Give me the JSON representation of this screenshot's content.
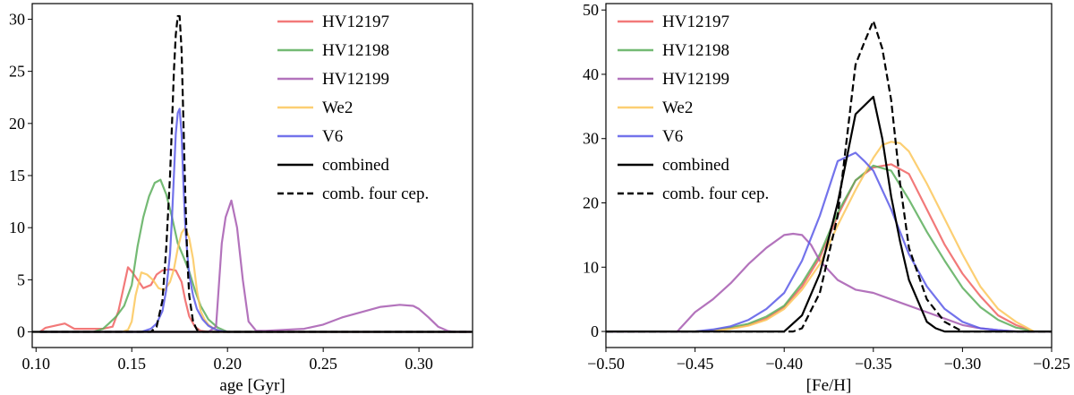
{
  "chart_data": [
    {
      "type": "line",
      "xlabel": "age [Gyr]",
      "ylabel": "",
      "xlim": [
        0.098,
        0.328
      ],
      "ylim": [
        -1.5,
        31.5
      ],
      "xticks": [
        0.1,
        0.15,
        0.2,
        0.25,
        0.3
      ],
      "xtick_labels": [
        "0.10",
        "0.15",
        "0.20",
        "0.25",
        "0.30"
      ],
      "yticks": [
        0,
        5,
        10,
        15,
        20,
        25,
        30
      ],
      "ytick_labels": [
        "0",
        "5",
        "10",
        "15",
        "20",
        "25",
        "30"
      ],
      "legend_position": "upper-right",
      "series": [
        {
          "name": "HV12197",
          "color": "#f06262",
          "dash": "solid",
          "x": [
            0.102,
            0.105,
            0.11,
            0.115,
            0.12,
            0.125,
            0.13,
            0.135,
            0.14,
            0.143,
            0.146,
            0.148,
            0.15,
            0.153,
            0.156,
            0.16,
            0.163,
            0.166,
            0.17,
            0.173,
            0.176,
            0.178,
            0.18,
            0.183,
            0.186,
            0.19,
            0.2,
            0.23,
            0.327
          ],
          "y": [
            0,
            0.4,
            0.6,
            0.8,
            0.3,
            0.3,
            0.3,
            0.3,
            0.5,
            2.0,
            4.5,
            6.2,
            5.8,
            5.0,
            4.2,
            4.5,
            5.5,
            5.9,
            6.0,
            5.9,
            4.8,
            3.0,
            1.5,
            0.5,
            0.1,
            0,
            0,
            0,
            0
          ]
        },
        {
          "name": "HV12198",
          "color": "#5cae5c",
          "dash": "solid",
          "x": [
            0.102,
            0.13,
            0.135,
            0.138,
            0.142,
            0.146,
            0.15,
            0.153,
            0.156,
            0.159,
            0.162,
            0.165,
            0.168,
            0.171,
            0.174,
            0.177,
            0.18,
            0.183,
            0.186,
            0.19,
            0.195,
            0.2,
            0.21,
            0.23,
            0.327
          ],
          "y": [
            0,
            0,
            0.3,
            0.8,
            1.5,
            2.5,
            4.5,
            8.2,
            11.0,
            13.0,
            14.3,
            14.6,
            13.2,
            11.0,
            8.5,
            7.2,
            5.8,
            4.0,
            2.5,
            1.2,
            0.4,
            0,
            0,
            0,
            0
          ]
        },
        {
          "name": "HV12199",
          "color": "#a65ab0",
          "dash": "solid",
          "x": [
            0.102,
            0.18,
            0.19,
            0.194,
            0.197,
            0.199,
            0.202,
            0.205,
            0.208,
            0.211,
            0.215,
            0.22,
            0.23,
            0.24,
            0.25,
            0.26,
            0.27,
            0.28,
            0.29,
            0.297,
            0.3,
            0.305,
            0.31,
            0.315,
            0.318,
            0.327
          ],
          "y": [
            0,
            0,
            0,
            0.5,
            8.5,
            11.0,
            12.6,
            10.0,
            5.0,
            1.0,
            0.1,
            0.1,
            0.2,
            0.3,
            0.7,
            1.4,
            1.9,
            2.4,
            2.6,
            2.5,
            2.2,
            1.4,
            0.5,
            0.1,
            0,
            0
          ]
        },
        {
          "name": "We2",
          "color": "#fcc75a",
          "dash": "solid",
          "x": [
            0.102,
            0.145,
            0.148,
            0.15,
            0.152,
            0.155,
            0.158,
            0.161,
            0.164,
            0.167,
            0.17,
            0.172,
            0.174,
            0.176,
            0.178,
            0.18,
            0.182,
            0.184,
            0.186,
            0.188,
            0.19,
            0.193,
            0.196,
            0.2,
            0.23,
            0.327
          ],
          "y": [
            0,
            0,
            0.2,
            1.0,
            3.5,
            5.7,
            5.5,
            5.0,
            4.2,
            4.0,
            4.8,
            6.0,
            8.0,
            9.5,
            10.0,
            9.0,
            7.0,
            4.0,
            2.0,
            1.2,
            0.7,
            0.3,
            0.1,
            0,
            0,
            0
          ]
        },
        {
          "name": "V6",
          "color": "#5a5ae8",
          "dash": "solid",
          "x": [
            0.102,
            0.155,
            0.16,
            0.163,
            0.166,
            0.168,
            0.17,
            0.171,
            0.172,
            0.173,
            0.174,
            0.175,
            0.176,
            0.177,
            0.178,
            0.179,
            0.18,
            0.182,
            0.184,
            0.187,
            0.19,
            0.193,
            0.196,
            0.2,
            0.205,
            0.327
          ],
          "y": [
            0,
            0,
            0.3,
            0.8,
            2.0,
            4.0,
            7.5,
            11.0,
            15.0,
            19.0,
            21.0,
            21.4,
            19.0,
            14.0,
            10.0,
            7.5,
            5.5,
            3.5,
            2.2,
            1.2,
            0.6,
            0.3,
            0.1,
            0,
            0,
            0
          ]
        },
        {
          "name": "combined",
          "color": "#000000",
          "dash": "solid",
          "x": [
            0.098,
            0.328
          ],
          "y": [
            0,
            0
          ]
        },
        {
          "name": "comb. four cep.",
          "color": "#000000",
          "dash": "dashed",
          "x": [
            0.102,
            0.16,
            0.163,
            0.166,
            0.168,
            0.17,
            0.171,
            0.172,
            0.173,
            0.174,
            0.175,
            0.176,
            0.177,
            0.178,
            0.179,
            0.18,
            0.182,
            0.184,
            0.187,
            0.327
          ],
          "y": [
            0,
            0,
            0.5,
            3.0,
            8.0,
            15.0,
            20.0,
            25.0,
            28.5,
            30.3,
            30.3,
            27.0,
            20.0,
            13.0,
            7.0,
            3.5,
            1.0,
            0.2,
            0,
            0
          ]
        }
      ]
    },
    {
      "type": "line",
      "xlabel": "[Fe/H]",
      "ylabel": "",
      "xlim": [
        -0.5,
        -0.25
      ],
      "ylim": [
        -2.5,
        51
      ],
      "xticks": [
        -0.5,
        -0.45,
        -0.4,
        -0.35,
        -0.3,
        -0.25
      ],
      "xtick_labels": [
        "−0.50",
        "−0.45",
        "−0.40",
        "−0.35",
        "−0.30",
        "−0.25"
      ],
      "yticks": [
        0,
        10,
        20,
        30,
        40,
        50
      ],
      "ytick_labels": [
        "0",
        "10",
        "20",
        "30",
        "40",
        "50"
      ],
      "legend_position": "upper-left",
      "series": [
        {
          "name": "HV12197",
          "color": "#f06262",
          "dash": "solid",
          "x": [
            -0.5,
            -0.45,
            -0.44,
            -0.43,
            -0.42,
            -0.41,
            -0.4,
            -0.39,
            -0.38,
            -0.37,
            -0.36,
            -0.35,
            -0.34,
            -0.33,
            -0.32,
            -0.31,
            -0.3,
            -0.29,
            -0.28,
            -0.27,
            -0.26,
            -0.25
          ],
          "y": [
            0,
            0,
            0.2,
            0.5,
            1.0,
            2.0,
            3.8,
            7.0,
            11.5,
            18.0,
            23.5,
            25.5,
            26.0,
            24.5,
            19.0,
            13.5,
            9.0,
            5.5,
            2.5,
            1.0,
            0,
            0
          ]
        },
        {
          "name": "HV12198",
          "color": "#5cae5c",
          "dash": "solid",
          "x": [
            -0.5,
            -0.45,
            -0.44,
            -0.43,
            -0.42,
            -0.41,
            -0.4,
            -0.39,
            -0.38,
            -0.37,
            -0.36,
            -0.35,
            -0.34,
            -0.33,
            -0.32,
            -0.31,
            -0.3,
            -0.29,
            -0.28,
            -0.27,
            -0.26,
            -0.25
          ],
          "y": [
            0,
            0,
            0.2,
            0.6,
            1.2,
            2.3,
            4.0,
            7.5,
            12.0,
            18.5,
            23.5,
            25.8,
            25.0,
            20.5,
            15.5,
            11.0,
            6.8,
            3.8,
            1.8,
            0.6,
            0,
            0
          ]
        },
        {
          "name": "HV12199",
          "color": "#a65ab0",
          "dash": "solid",
          "x": [
            -0.5,
            -0.46,
            -0.45,
            -0.44,
            -0.43,
            -0.42,
            -0.41,
            -0.4,
            -0.395,
            -0.39,
            -0.385,
            -0.38,
            -0.37,
            -0.36,
            -0.35,
            -0.34,
            -0.33,
            -0.32,
            -0.31,
            -0.3,
            -0.29,
            -0.28,
            -0.27,
            -0.25
          ],
          "y": [
            0,
            0,
            3.0,
            5.0,
            7.5,
            10.5,
            13.0,
            15.0,
            15.2,
            15.0,
            13.5,
            11.0,
            8.0,
            6.5,
            6.0,
            5.0,
            4.0,
            3.0,
            2.0,
            1.0,
            0.5,
            0.2,
            0,
            0
          ]
        },
        {
          "name": "We2",
          "color": "#fcc75a",
          "dash": "solid",
          "x": [
            -0.5,
            -0.45,
            -0.44,
            -0.43,
            -0.42,
            -0.41,
            -0.4,
            -0.39,
            -0.38,
            -0.37,
            -0.36,
            -0.35,
            -0.345,
            -0.34,
            -0.335,
            -0.33,
            -0.32,
            -0.31,
            -0.3,
            -0.29,
            -0.28,
            -0.27,
            -0.26,
            -0.25
          ],
          "y": [
            0,
            0,
            0.1,
            0.4,
            0.9,
            1.8,
            3.5,
            6.5,
            10.5,
            16.5,
            22.0,
            27.0,
            29.0,
            29.5,
            29.3,
            28.0,
            23.0,
            17.5,
            12.0,
            7.0,
            3.5,
            1.5,
            0,
            0
          ]
        },
        {
          "name": "V6",
          "color": "#5a5ae8",
          "dash": "solid",
          "x": [
            -0.5,
            -0.45,
            -0.44,
            -0.43,
            -0.42,
            -0.41,
            -0.4,
            -0.39,
            -0.38,
            -0.37,
            -0.36,
            -0.355,
            -0.35,
            -0.34,
            -0.33,
            -0.32,
            -0.31,
            -0.3,
            -0.29,
            -0.28,
            -0.27,
            -0.26,
            -0.25
          ],
          "y": [
            0,
            0,
            0.3,
            0.8,
            1.8,
            3.5,
            6.0,
            11.0,
            18.0,
            26.5,
            27.8,
            26.5,
            25.0,
            19.0,
            12.0,
            7.0,
            3.5,
            1.5,
            0.5,
            0.2,
            0,
            0,
            0
          ]
        },
        {
          "name": "combined",
          "color": "#000000",
          "dash": "solid",
          "x": [
            -0.5,
            -0.4,
            -0.39,
            -0.38,
            -0.37,
            -0.36,
            -0.35,
            -0.345,
            -0.34,
            -0.335,
            -0.33,
            -0.32,
            -0.315,
            -0.31,
            -0.3,
            -0.25
          ],
          "y": [
            0,
            0,
            2.5,
            9.0,
            20.0,
            33.8,
            36.5,
            30.0,
            21.0,
            14.0,
            8.0,
            1.5,
            0.5,
            0,
            0,
            0
          ]
        },
        {
          "name": "comb. four cep.",
          "color": "#000000",
          "dash": "dashed",
          "x": [
            -0.5,
            -0.395,
            -0.39,
            -0.38,
            -0.37,
            -0.36,
            -0.355,
            -0.35,
            -0.345,
            -0.34,
            -0.335,
            -0.33,
            -0.32,
            -0.31,
            -0.3,
            -0.25
          ],
          "y": [
            0,
            0,
            0.5,
            6.0,
            18.0,
            41.5,
            45.0,
            48.3,
            44.0,
            36.0,
            23.0,
            13.0,
            5.0,
            1.5,
            0,
            0
          ]
        }
      ]
    }
  ]
}
